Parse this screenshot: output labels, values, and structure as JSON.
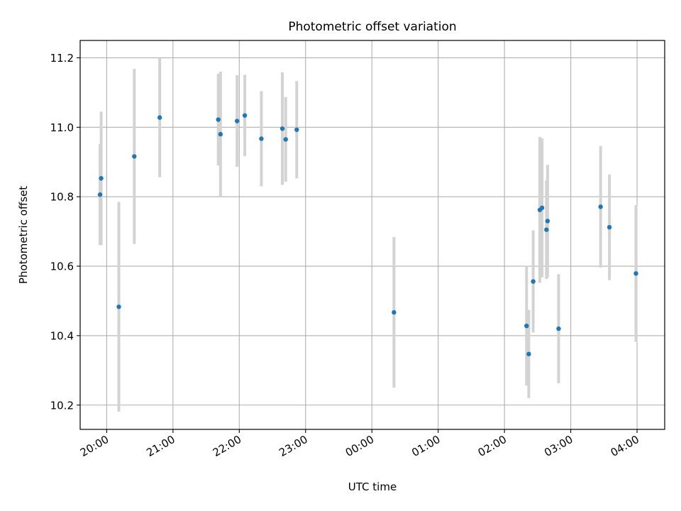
{
  "chart_data": {
    "type": "scatter",
    "title": "Photometric offset variation",
    "xlabel": "UTC time",
    "ylabel": "Photometric offset",
    "x_is_time": true,
    "x_tick_labels": [
      "20:00",
      "21:00",
      "22:00",
      "23:00",
      "00:00",
      "01:00",
      "02:00",
      "03:00",
      "04:00"
    ],
    "y_ticks": [
      10.2,
      10.4,
      10.6,
      10.8,
      11.0,
      11.2
    ],
    "y_tick_labels": [
      "10.2",
      "10.4",
      "10.6",
      "10.8",
      "11.0",
      "11.2"
    ],
    "xlim": [
      "19:36",
      "04:25"
    ],
    "ylim": [
      10.13,
      11.25
    ],
    "grid": true,
    "series": [
      {
        "point_color": "#1f77b4",
        "errorbar_color": "#d3d3d3",
        "points": [
          {
            "x": "19:54",
            "y": 10.806,
            "yerr": 0.145
          },
          {
            "x": "19:55",
            "y": 10.853,
            "yerr": 0.192
          },
          {
            "x": "20:11",
            "y": 10.483,
            "yerr": 0.302
          },
          {
            "x": "20:25",
            "y": 10.916,
            "yerr": 0.252
          },
          {
            "x": "20:48",
            "y": 11.028,
            "yerr": 0.172
          },
          {
            "x": "21:41",
            "y": 11.022,
            "yerr": 0.132
          },
          {
            "x": "21:43",
            "y": 10.98,
            "yerr": 0.18
          },
          {
            "x": "21:58",
            "y": 11.018,
            "yerr": 0.132
          },
          {
            "x": "22:05",
            "y": 11.034,
            "yerr": 0.117
          },
          {
            "x": "22:20",
            "y": 10.967,
            "yerr": 0.137
          },
          {
            "x": "22:39",
            "y": 10.996,
            "yerr": 0.162
          },
          {
            "x": "22:42",
            "y": 10.965,
            "yerr": 0.122
          },
          {
            "x": "22:52",
            "y": 10.993,
            "yerr": 0.14
          },
          {
            "x": "00:20",
            "y": 10.467,
            "yerr": 0.217
          },
          {
            "x": "02:20",
            "y": 10.428,
            "yerr": 0.172
          },
          {
            "x": "02:22",
            "y": 10.347,
            "yerr": 0.127
          },
          {
            "x": "02:26",
            "y": 10.556,
            "yerr": 0.147
          },
          {
            "x": "02:32",
            "y": 10.762,
            "yerr": 0.21
          },
          {
            "x": "02:34",
            "y": 10.768,
            "yerr": 0.2
          },
          {
            "x": "02:38",
            "y": 10.705,
            "yerr": 0.142
          },
          {
            "x": "02:39",
            "y": 10.73,
            "yerr": 0.162
          },
          {
            "x": "02:49",
            "y": 10.42,
            "yerr": 0.157
          },
          {
            "x": "03:27",
            "y": 10.771,
            "yerr": 0.175
          },
          {
            "x": "03:35",
            "y": 10.712,
            "yerr": 0.152
          },
          {
            "x": "03:59",
            "y": 10.579,
            "yerr": 0.197
          }
        ]
      }
    ]
  }
}
